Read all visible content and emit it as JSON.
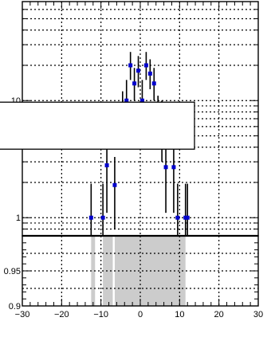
{
  "chart_data": [
    {
      "type": "scatter",
      "title": "",
      "xlabel": "",
      "ylabel": "",
      "yscale": "log",
      "xlim": [
        -30,
        30
      ],
      "ylim": [
        0.7,
        70
      ],
      "grid": true,
      "y_ticks": [
        {
          "value": 1,
          "label": "1"
        },
        {
          "value": 10,
          "label": "10"
        }
      ],
      "series": [
        {
          "marker_color": "#0000cc",
          "points": [
            {
              "x": -12.5,
              "y": 1.0,
              "err_low": 0.45,
              "err_high": 0.95
            },
            {
              "x": -9.5,
              "y": 1.0,
              "err_low": 0.45,
              "err_high": 0.95
            },
            {
              "x": -8.5,
              "y": 2.8,
              "err_low": 1.7,
              "err_high": 1.8
            },
            {
              "x": -6.5,
              "y": 1.9,
              "err_low": 1.1,
              "err_high": 1.4
            },
            {
              "x": -4.5,
              "y": 8.0,
              "err_low": 3.5,
              "err_high": 4.0
            },
            {
              "x": -3.5,
              "y": 10.0,
              "err_low": 3.5,
              "err_high": 5.0
            },
            {
              "x": -2.5,
              "y": 20.0,
              "err_low": 5.0,
              "err_high": 6.0
            },
            {
              "x": -1.5,
              "y": 14.0,
              "err_low": 4.0,
              "err_high": 5.0
            },
            {
              "x": -0.5,
              "y": 18.0,
              "err_low": 5.0,
              "err_high": 6.0
            },
            {
              "x": 0.5,
              "y": 10.0,
              "err_low": 3.5,
              "err_high": 5.0
            },
            {
              "x": 1.5,
              "y": 20.0,
              "err_low": 5.0,
              "err_high": 6.0
            },
            {
              "x": 2.5,
              "y": 17.0,
              "err_low": 4.5,
              "err_high": 5.5
            },
            {
              "x": 3.5,
              "y": 14.0,
              "err_low": 4.0,
              "err_high": 5.0
            },
            {
              "x": 4.5,
              "y": 7.0,
              "err_low": 3.0,
              "err_high": 4.0
            },
            {
              "x": 5.5,
              "y": 6.0,
              "err_low": 3.0,
              "err_high": 4.0
            },
            {
              "x": 6.5,
              "y": 2.7,
              "err_low": 1.6,
              "err_high": 1.7
            },
            {
              "x": 8.5,
              "y": 2.7,
              "err_low": 1.6,
              "err_high": 1.7
            },
            {
              "x": 9.5,
              "y": 1.0,
              "err_low": 0.45,
              "err_high": 0.95
            },
            {
              "x": 11.5,
              "y": 1.0,
              "err_low": 0.45,
              "err_high": 0.95
            },
            {
              "x": 12.0,
              "y": 1.0,
              "err_low": 0.45,
              "err_high": 0.95
            }
          ]
        }
      ],
      "legend_box": {
        "position": "left-middle",
        "entries": []
      }
    },
    {
      "type": "area",
      "title": "",
      "xlabel": "",
      "ylabel": "",
      "xlim": [
        -30,
        30
      ],
      "ylim": [
        0.9,
        1.0
      ],
      "grid": true,
      "x_ticks": [
        {
          "value": -30,
          "label": "−30"
        },
        {
          "value": -20,
          "label": "−20"
        },
        {
          "value": -10,
          "label": "−10"
        },
        {
          "value": 0,
          "label": "0"
        },
        {
          "value": 10,
          "label": "10"
        },
        {
          "value": 20,
          "label": "20"
        },
        {
          "value": 30,
          "label": "30"
        }
      ],
      "y_ticks": [
        {
          "value": 0.9,
          "label": "0.9"
        },
        {
          "value": 0.95,
          "label": "0.95"
        }
      ],
      "bands": [
        {
          "x0": -12.5,
          "x1": -11.5,
          "y0": 0.9,
          "y1": 1.0
        },
        {
          "x0": -9.5,
          "x1": -7.0,
          "y0": 0.9,
          "y1": 1.0
        },
        {
          "x0": -6.5,
          "x1": 11.5,
          "y0": 0.9,
          "y1": 1.0
        }
      ],
      "band_color": "#cccccc"
    }
  ]
}
